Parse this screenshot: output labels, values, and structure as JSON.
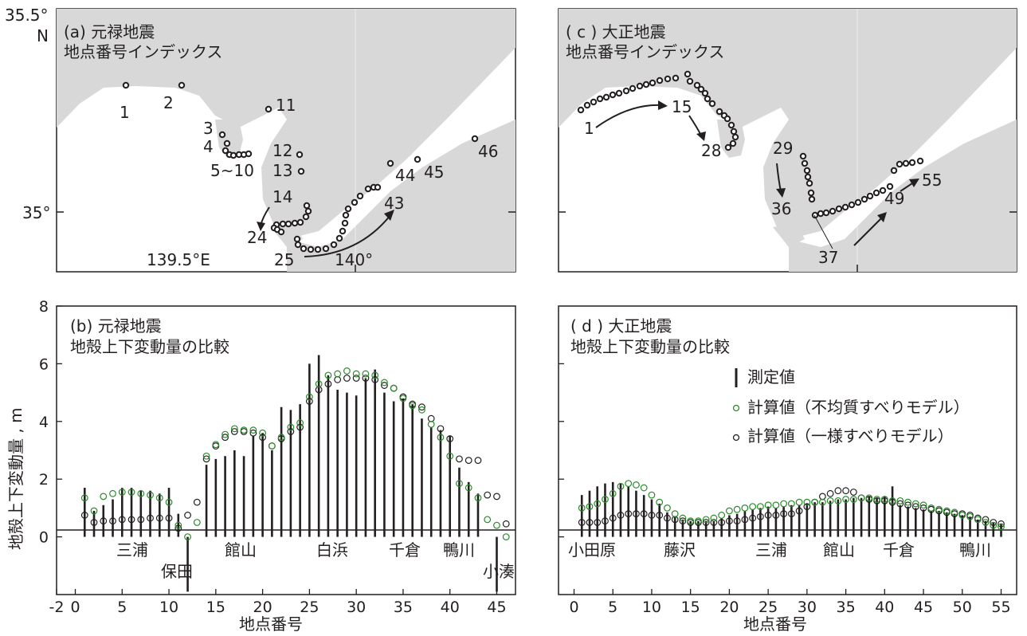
{
  "map_a": {
    "title1": "(a) 元禄地震",
    "title2": "地点番号インデックス",
    "lat_top": "35.5°",
    "lat_top_n": "N",
    "lat_mid": "35°",
    "lon_left": "139.5°E",
    "lon_right": "140°",
    "labels": [
      "1",
      "2",
      "3",
      "4",
      "5~10",
      "11",
      "12",
      "13",
      "14",
      "24",
      "25",
      "43",
      "44",
      "45",
      "46"
    ]
  },
  "map_c": {
    "title1": "( c ) 大正地震",
    "title2": "地点番号インデックス",
    "labels": [
      "1",
      "15",
      "28",
      "29",
      "36",
      "37",
      "49",
      "55"
    ]
  },
  "chart_data": [
    {
      "type": "bar",
      "title": "(b) 元禄地震",
      "subtitle": "地殻上下変動量の比較",
      "xlabel": "地点番号",
      "ylabel": "地殻上下変動量 , m",
      "xlim": [
        -2,
        47
      ],
      "ylim": [
        -2,
        8
      ],
      "xticks": [
        -2,
        0,
        5,
        10,
        15,
        20,
        25,
        30,
        35,
        40,
        45
      ],
      "yticks": [
        0,
        2,
        4,
        6,
        8
      ],
      "x": [
        1,
        2,
        3,
        4,
        5,
        6,
        7,
        8,
        9,
        10,
        11,
        12,
        13,
        14,
        15,
        16,
        17,
        18,
        19,
        20,
        21,
        22,
        23,
        24,
        25,
        26,
        27,
        28,
        29,
        30,
        31,
        32,
        33,
        34,
        35,
        36,
        37,
        38,
        39,
        40,
        41,
        42,
        43,
        44,
        45,
        46
      ],
      "series": [
        {
          "name": "測定値",
          "values": [
            1.7,
            0.9,
            1.1,
            1.3,
            1.7,
            1.7,
            1.6,
            1.6,
            1.5,
            1.7,
            0.8,
            -1.9,
            null,
            2.5,
            2.7,
            2.8,
            3.0,
            2.8,
            3.5,
            3.6,
            3.0,
            4.5,
            4.4,
            4.6,
            6.0,
            6.3,
            5.6,
            5.1,
            5.0,
            4.9,
            5.5,
            5.8,
            5.0,
            4.7,
            4.8,
            4.6,
            4.1,
            3.8,
            3.7,
            3.5,
            2.4,
            1.9,
            1.5,
            null,
            -1.9,
            null
          ]
        },
        {
          "name": "計算値（不均質すべりモデル）",
          "values": [
            1.35,
            0.9,
            1.4,
            1.5,
            1.55,
            1.55,
            1.5,
            1.45,
            1.35,
            1.2,
            0.4,
            0.0,
            0.5,
            2.8,
            3.2,
            3.55,
            3.75,
            3.7,
            3.7,
            3.6,
            3.15,
            3.45,
            3.8,
            3.95,
            4.85,
            5.3,
            5.6,
            5.65,
            5.75,
            5.65,
            5.65,
            5.6,
            5.35,
            5.15,
            4.8,
            4.55,
            4.4,
            3.9,
            3.45,
            2.8,
            1.85,
            1.7,
            1.35,
            0.6,
            0.4,
            0.0
          ]
        },
        {
          "name": "計算値（一様すべりモデル）",
          "values": [
            0.75,
            0.5,
            0.55,
            0.55,
            0.6,
            0.6,
            0.6,
            0.65,
            0.65,
            0.65,
            0.3,
            0.75,
            1.2,
            2.7,
            3.15,
            3.45,
            3.65,
            3.65,
            3.6,
            3.45,
            3.15,
            3.4,
            3.65,
            3.8,
            4.7,
            5.1,
            5.3,
            5.45,
            5.5,
            5.5,
            5.5,
            5.45,
            5.25,
            5.15,
            4.85,
            4.6,
            4.5,
            4.1,
            3.75,
            3.4,
            2.7,
            2.65,
            2.65,
            1.45,
            1.4,
            0.45
          ]
        }
      ],
      "area_labels": [
        "三浦",
        "保田",
        "館山",
        "白浜",
        "千倉",
        "鴨川",
        "小湊"
      ]
    },
    {
      "type": "bar",
      "title": "( d ) 大正地震",
      "subtitle": "地殻上下変動量の比較",
      "xlabel": "地点番号",
      "xlim": [
        -2,
        57
      ],
      "ylim": [
        -2,
        8
      ],
      "xticks": [
        0,
        5,
        10,
        15,
        20,
        25,
        30,
        35,
        40,
        45,
        50,
        55
      ],
      "x": [
        1,
        2,
        3,
        4,
        5,
        6,
        7,
        8,
        9,
        10,
        11,
        12,
        13,
        14,
        15,
        16,
        17,
        18,
        19,
        20,
        21,
        22,
        23,
        24,
        25,
        26,
        27,
        28,
        29,
        30,
        31,
        32,
        33,
        34,
        35,
        36,
        37,
        38,
        39,
        40,
        41,
        42,
        43,
        44,
        45,
        46,
        47,
        48,
        49,
        50,
        51,
        52,
        53,
        54,
        55
      ],
      "legend": [
        "測定値",
        "計算値（不均質すべりモデル）",
        "計算値（一様すべりモデル）"
      ],
      "series": [
        {
          "name": "測定値",
          "values": [
            1.45,
            1.6,
            1.75,
            1.85,
            1.9,
            1.85,
            1.75,
            1.6,
            1.45,
            1.3,
            1.15,
            0.85,
            0.7,
            0.6,
            0.55,
            0.55,
            0.55,
            0.55,
            0.65,
            0.75,
            0.8,
            0.9,
            0.95,
            1.0,
            1.05,
            1.0,
            1.05,
            1.1,
            1.1,
            1.15,
            1.2,
            1.2,
            1.25,
            1.3,
            1.3,
            1.35,
            1.35,
            1.4,
            1.35,
            1.4,
            1.75,
            1.1,
            1.05,
            1.0,
            0.95,
            0.9,
            0.9,
            0.85,
            0.8,
            0.75,
            0.7,
            0.6,
            0.55,
            0.5,
            0.45
          ]
        },
        {
          "name": "計算値（不均質すべりモデル）",
          "values": [
            1.0,
            1.05,
            1.15,
            1.3,
            1.5,
            1.75,
            1.85,
            1.8,
            1.7,
            1.45,
            1.2,
            1.0,
            0.8,
            0.65,
            0.55,
            0.55,
            0.6,
            0.65,
            0.75,
            0.9,
            0.95,
            1.0,
            1.05,
            1.05,
            1.1,
            1.1,
            1.15,
            1.15,
            1.2,
            1.2,
            1.2,
            1.2,
            1.25,
            1.25,
            1.3,
            1.3,
            1.35,
            1.35,
            1.3,
            1.3,
            1.25,
            1.25,
            1.2,
            1.15,
            1.1,
            1.0,
            0.95,
            0.9,
            0.85,
            0.75,
            0.7,
            0.6,
            0.5,
            0.4,
            0.35
          ]
        },
        {
          "name": "計算値（一様すべりモデル）",
          "values": [
            0.5,
            0.5,
            0.5,
            0.55,
            0.65,
            0.75,
            0.8,
            0.8,
            0.8,
            0.75,
            0.75,
            0.65,
            0.6,
            0.55,
            0.5,
            0.5,
            0.5,
            0.5,
            0.5,
            0.55,
            0.55,
            0.6,
            0.65,
            0.7,
            0.75,
            0.75,
            0.8,
            0.8,
            0.9,
            1.05,
            1.2,
            1.4,
            1.5,
            1.6,
            1.6,
            1.55,
            1.35,
            1.3,
            1.25,
            1.25,
            1.2,
            1.15,
            1.1,
            1.05,
            1.0,
            0.95,
            0.9,
            0.85,
            0.8,
            0.8,
            0.75,
            0.65,
            0.6,
            0.5,
            0.45
          ]
        }
      ],
      "area_labels": [
        "小田原",
        "藤沢",
        "三浦",
        "館山",
        "千倉",
        "鴨川"
      ]
    }
  ]
}
